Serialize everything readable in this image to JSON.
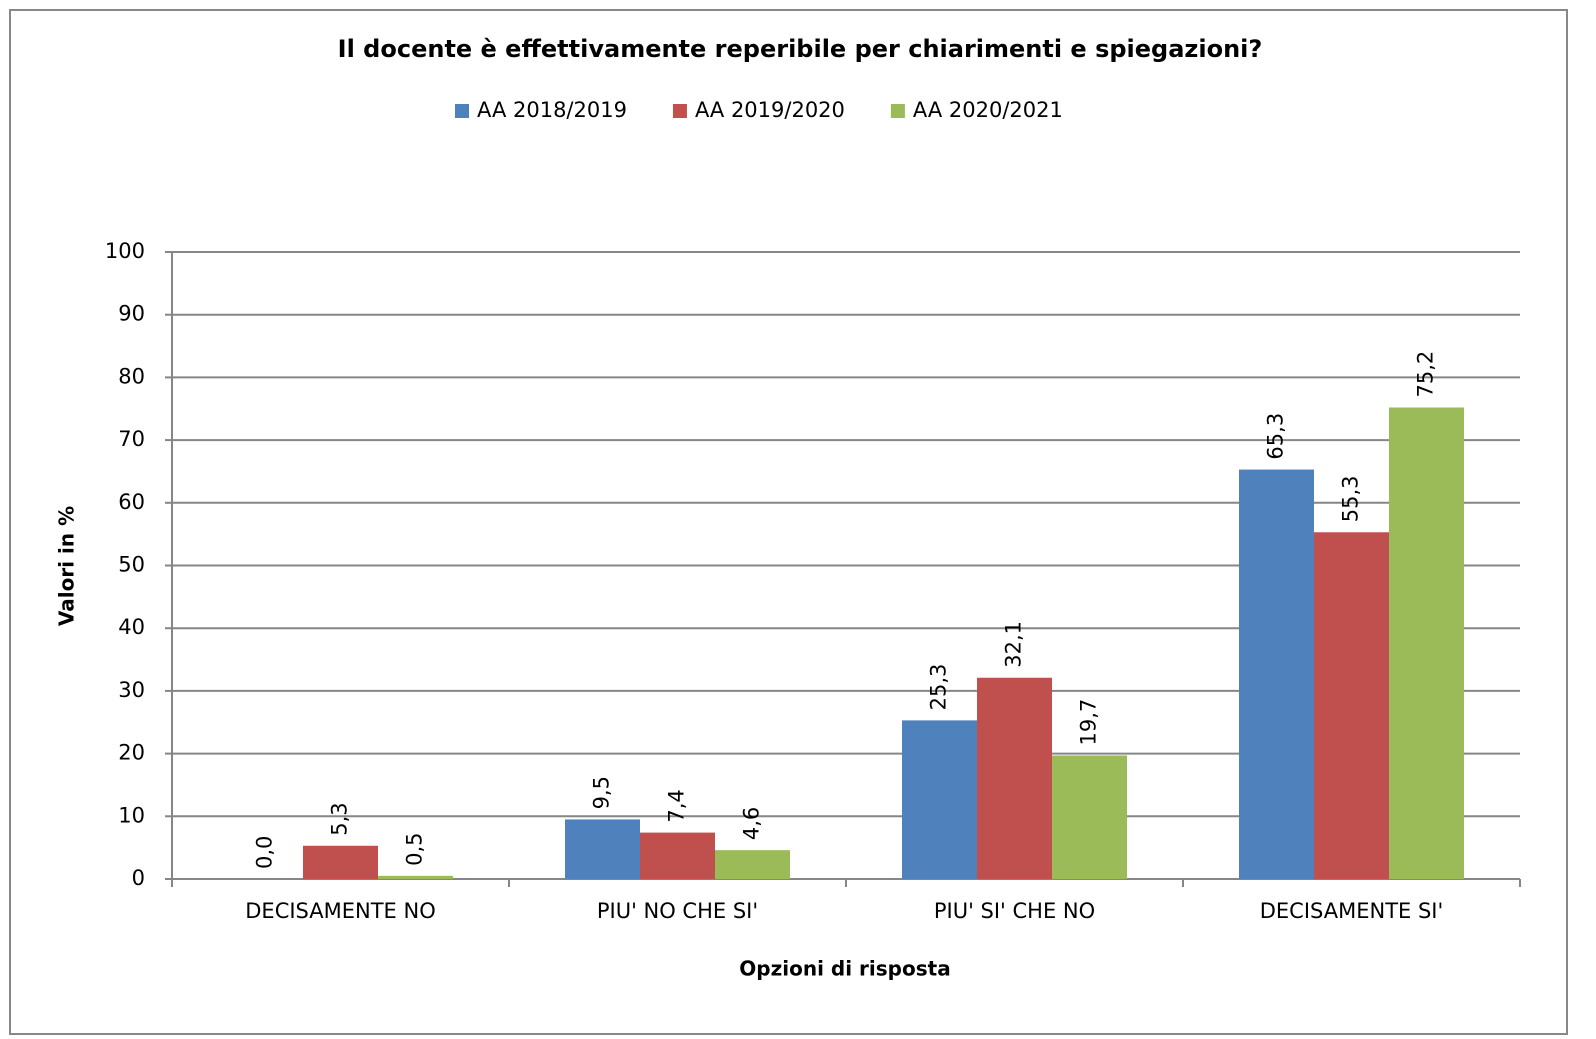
{
  "chart_data": {
    "type": "bar",
    "title": "Il docente è effettivamente reperibile per chiarimenti e spiegazioni?",
    "x_label": "Opzioni di risposta",
    "y_label": "Valori in %",
    "categories": [
      "DECISAMENTE NO",
      "PIU' NO CHE SI'",
      "PIU' SI' CHE NO",
      "DECISAMENTE SI'"
    ],
    "series": [
      {
        "name": "AA 2018/2019",
        "color": "#4f81bd",
        "values": [
          0.0,
          9.5,
          25.3,
          65.3
        ],
        "value_labels": [
          "0,0",
          "9,5",
          "25,3",
          "65,3"
        ]
      },
      {
        "name": "AA 2019/2020",
        "color": "#c0504d",
        "values": [
          5.3,
          7.4,
          32.1,
          55.3
        ],
        "value_labels": [
          "5,3",
          "7,4",
          "32,1",
          "55,3"
        ]
      },
      {
        "name": "AA 2020/2021",
        "color": "#9bbb59",
        "values": [
          0.5,
          4.6,
          19.7,
          75.2
        ],
        "value_labels": [
          "0,5",
          "4,6",
          "19,7",
          "75,2"
        ]
      }
    ],
    "ylim": [
      0,
      100
    ],
    "yticks": [
      0,
      10,
      20,
      30,
      40,
      50,
      60,
      70,
      80,
      90,
      100
    ],
    "grid": true,
    "legend": "top"
  }
}
